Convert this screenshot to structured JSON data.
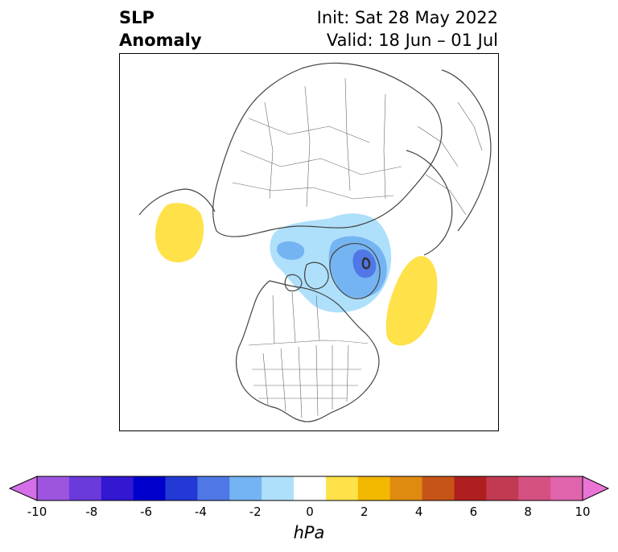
{
  "header": {
    "title_line1": "SLP",
    "title_line2": "Anomaly",
    "init_text": "Init: Sat 28 May 2022",
    "valid_text": "Valid: 18 Jun – 01 Jul"
  },
  "map": {
    "projection": "north-polar-stereographic",
    "features": [
      "coastlines",
      "country-borders",
      "us-state-borders",
      "canada-province-borders"
    ],
    "anomaly_regions": [
      {
        "name": "positive",
        "level": "1 to 2",
        "color": "#ffe14a"
      },
      {
        "name": "negative",
        "level": "-1 to -2",
        "color": "#aee0fb"
      },
      {
        "name": "negative",
        "level": "-2 to -3",
        "color": "#75b4f3"
      },
      {
        "name": "negative",
        "level": "-3 to -4",
        "color": "#4f78e6"
      }
    ]
  },
  "colorbar": {
    "units": "hPa",
    "extend": "both",
    "min": -10,
    "max": 10,
    "ticks": [
      "-10",
      "-8",
      "-6",
      "-4",
      "-2",
      "0",
      "2",
      "4",
      "6",
      "8",
      "10"
    ],
    "colors": [
      "#d46fe8",
      "#9d55e0",
      "#6a3adb",
      "#3318d1",
      "#0000cc",
      "#2239d6",
      "#4f78e6",
      "#75b4f3",
      "#aee0fb",
      "#ffffff",
      "#ffe14a",
      "#f2b800",
      "#df8a10",
      "#c65417",
      "#b01f1f",
      "#c23a52",
      "#d45080",
      "#df64ab",
      "#ea74d6"
    ]
  }
}
